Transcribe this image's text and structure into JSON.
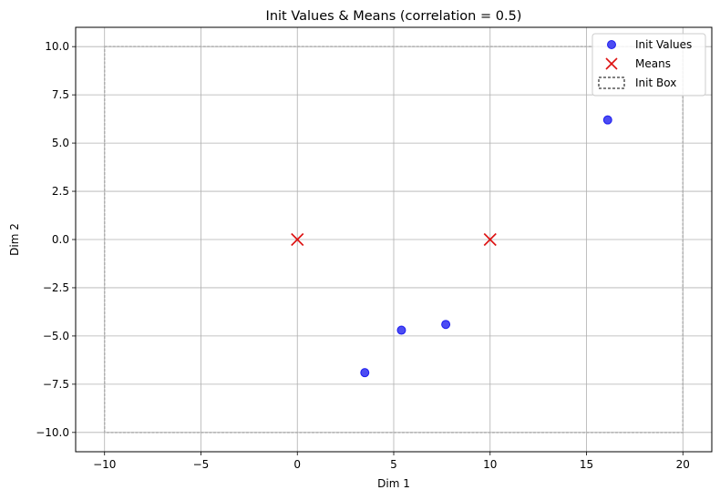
{
  "chart_data": {
    "type": "scatter",
    "title": "Init Values & Means (correlation = 0.5)",
    "xlabel": "Dim 1",
    "ylabel": "Dim 2",
    "xlim": [
      -11.5,
      21.5
    ],
    "ylim": [
      -11,
      11
    ],
    "xticks": [
      -10,
      -5,
      0,
      5,
      10,
      15,
      20
    ],
    "yticks": [
      -10.0,
      -7.5,
      -5.0,
      -2.5,
      0.0,
      2.5,
      5.0,
      7.5,
      10.0
    ],
    "xtick_labels": [
      "−10",
      "−5",
      "0",
      "5",
      "10",
      "15",
      "20"
    ],
    "ytick_labels": [
      "−10.0",
      "−7.5",
      "−5.0",
      "−2.5",
      "0.0",
      "2.5",
      "5.0",
      "7.5",
      "10.0"
    ],
    "grid": true,
    "legend_position": "top-right",
    "series": [
      {
        "name": "Init Values",
        "marker": "circle",
        "color": "#0000ee",
        "points": [
          [
            16.1,
            6.2
          ],
          [
            3.5,
            -6.9
          ],
          [
            5.4,
            -4.7
          ],
          [
            7.7,
            -4.4
          ]
        ]
      },
      {
        "name": "Means",
        "marker": "x",
        "color": "#dd1111",
        "points": [
          [
            0,
            0
          ],
          [
            10,
            0
          ]
        ]
      }
    ],
    "box": {
      "name": "Init Box",
      "x_range": [
        -10,
        20
      ],
      "y_range": [
        -10,
        10
      ],
      "color": "#b0b0b0",
      "style": "dashed"
    }
  }
}
